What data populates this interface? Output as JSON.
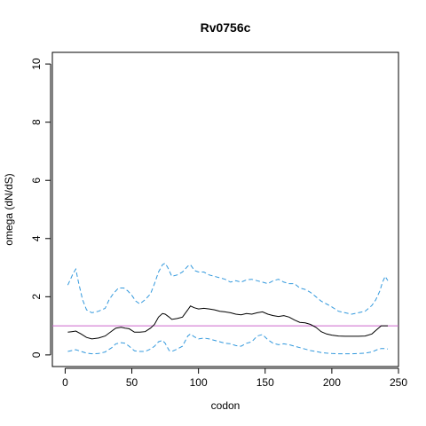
{
  "chart_data": {
    "type": "line",
    "title": "Rv0756c",
    "xlabel": "codon",
    "ylabel": "omega (dN/dS)",
    "xlim": [
      0,
      250
    ],
    "ylim": [
      0,
      10
    ],
    "x_ticks": [
      0,
      50,
      100,
      150,
      200,
      250
    ],
    "y_ticks": [
      0,
      2,
      4,
      6,
      8,
      10
    ],
    "reference_line": {
      "y": 1,
      "color": "#cc66cc"
    },
    "series": [
      {
        "role": "estimate",
        "color": "#000000",
        "dash": "solid",
        "x": [
          2,
          5,
          8,
          12,
          16,
          20,
          25,
          30,
          35,
          38,
          42,
          45,
          48,
          52,
          56,
          60,
          64,
          67,
          70,
          73,
          75,
          78,
          80,
          84,
          88,
          92,
          94,
          97,
          100,
          104,
          108,
          112,
          116,
          120,
          124,
          128,
          132,
          136,
          140,
          144,
          148,
          152,
          156,
          160,
          164,
          168,
          172,
          176,
          180,
          184,
          188,
          192,
          196,
          200,
          205,
          210,
          215,
          220,
          225,
          230,
          234,
          237,
          240,
          242
        ],
        "y": [
          0.78,
          0.8,
          0.82,
          0.72,
          0.6,
          0.55,
          0.58,
          0.65,
          0.82,
          0.92,
          0.95,
          0.92,
          0.9,
          0.78,
          0.78,
          0.8,
          0.92,
          1.05,
          1.3,
          1.42,
          1.4,
          1.3,
          1.22,
          1.25,
          1.3,
          1.55,
          1.68,
          1.62,
          1.58,
          1.6,
          1.58,
          1.55,
          1.5,
          1.48,
          1.45,
          1.4,
          1.38,
          1.42,
          1.4,
          1.45,
          1.48,
          1.4,
          1.35,
          1.32,
          1.35,
          1.3,
          1.2,
          1.12,
          1.1,
          1.05,
          0.95,
          0.8,
          0.72,
          0.68,
          0.65,
          0.64,
          0.64,
          0.64,
          0.65,
          0.72,
          0.88,
          1.0,
          1.0,
          1.0
        ]
      },
      {
        "role": "upper-bound",
        "color": "#3399dd",
        "dash": "dashed",
        "x": [
          2,
          4,
          6,
          8,
          10,
          13,
          16,
          20,
          25,
          30,
          33,
          36,
          40,
          44,
          47,
          50,
          53,
          56,
          60,
          64,
          67,
          70,
          73,
          75,
          77,
          80,
          84,
          88,
          92,
          94,
          97,
          100,
          104,
          108,
          112,
          116,
          120,
          124,
          128,
          132,
          136,
          140,
          144,
          148,
          152,
          156,
          160,
          164,
          168,
          172,
          176,
          180,
          184,
          188,
          192,
          196,
          200,
          205,
          210,
          215,
          220,
          225,
          230,
          233,
          236,
          238,
          240,
          242
        ],
        "y": [
          2.4,
          2.6,
          2.8,
          2.95,
          2.5,
          1.9,
          1.55,
          1.45,
          1.5,
          1.6,
          1.9,
          2.1,
          2.3,
          2.3,
          2.2,
          2.05,
          1.85,
          1.75,
          1.9,
          2.1,
          2.45,
          2.85,
          3.1,
          3.15,
          3.0,
          2.7,
          2.75,
          2.85,
          3.05,
          3.1,
          2.9,
          2.85,
          2.85,
          2.75,
          2.7,
          2.65,
          2.6,
          2.5,
          2.55,
          2.5,
          2.58,
          2.6,
          2.55,
          2.5,
          2.45,
          2.55,
          2.6,
          2.5,
          2.45,
          2.45,
          2.3,
          2.25,
          2.15,
          2.0,
          1.85,
          1.75,
          1.65,
          1.5,
          1.45,
          1.4,
          1.45,
          1.5,
          1.7,
          1.9,
          2.2,
          2.5,
          2.7,
          2.55
        ]
      },
      {
        "role": "lower-bound",
        "color": "#3399dd",
        "dash": "dashed",
        "x": [
          2,
          5,
          8,
          12,
          16,
          20,
          25,
          30,
          35,
          38,
          42,
          45,
          48,
          52,
          56,
          60,
          64,
          67,
          70,
          73,
          75,
          78,
          80,
          84,
          88,
          92,
          94,
          97,
          100,
          104,
          108,
          112,
          116,
          120,
          124,
          128,
          132,
          136,
          140,
          144,
          148,
          152,
          156,
          160,
          164,
          168,
          172,
          176,
          180,
          184,
          188,
          192,
          196,
          200,
          205,
          210,
          215,
          220,
          225,
          230,
          234,
          237,
          240,
          242
        ],
        "y": [
          0.12,
          0.15,
          0.18,
          0.12,
          0.06,
          0.04,
          0.05,
          0.1,
          0.25,
          0.38,
          0.42,
          0.4,
          0.3,
          0.14,
          0.12,
          0.12,
          0.2,
          0.3,
          0.45,
          0.5,
          0.4,
          0.15,
          0.12,
          0.2,
          0.3,
          0.65,
          0.72,
          0.62,
          0.55,
          0.58,
          0.55,
          0.5,
          0.45,
          0.4,
          0.38,
          0.32,
          0.3,
          0.4,
          0.45,
          0.65,
          0.7,
          0.52,
          0.4,
          0.35,
          0.38,
          0.35,
          0.3,
          0.25,
          0.2,
          0.15,
          0.12,
          0.08,
          0.06,
          0.05,
          0.04,
          0.04,
          0.04,
          0.05,
          0.06,
          0.1,
          0.18,
          0.22,
          0.22,
          0.2
        ]
      }
    ],
    "grid": false,
    "legend": "none"
  }
}
